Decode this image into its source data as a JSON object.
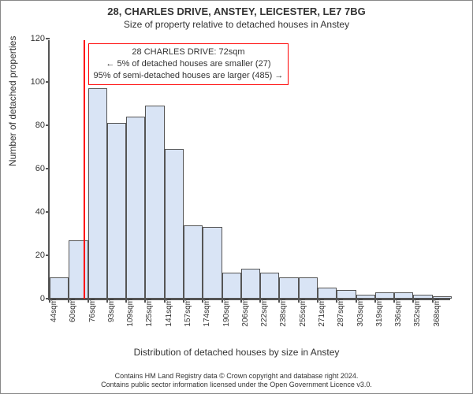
{
  "header": {
    "address": "28, CHARLES DRIVE, ANSTEY, LEICESTER, LE7 7BG",
    "subtitle": "Size of property relative to detached houses in Anstey"
  },
  "axes": {
    "ylabel": "Number of detached properties",
    "xlabel": "Distribution of detached houses by size in Anstey",
    "ylim": [
      0,
      120
    ],
    "yticks": [
      0,
      20,
      40,
      60,
      80,
      100,
      120
    ],
    "xticks": [
      "44sqm",
      "60sqm",
      "76sqm",
      "93sqm",
      "109sqm",
      "125sqm",
      "141sqm",
      "157sqm",
      "174sqm",
      "190sqm",
      "206sqm",
      "222sqm",
      "238sqm",
      "255sqm",
      "271sqm",
      "287sqm",
      "303sqm",
      "319sqm",
      "336sqm",
      "352sqm",
      "368sqm"
    ]
  },
  "chart": {
    "type": "histogram",
    "bar_color": "#d9e4f5",
    "bar_border": "#555555",
    "background": "#ffffff",
    "values": [
      10,
      27,
      97,
      81,
      84,
      89,
      69,
      34,
      33,
      12,
      14,
      12,
      10,
      10,
      5,
      4,
      2,
      3,
      3,
      2,
      1
    ],
    "marker": {
      "position_index": 1.75,
      "color": "#ff0000",
      "width": 2
    },
    "annotation": {
      "line1": "28 CHARLES DRIVE: 72sqm",
      "line2": "← 5% of detached houses are smaller (27)",
      "line3": "95% of semi-detached houses are larger (485) →",
      "border_color": "#ff0000"
    }
  },
  "footer": {
    "line1": "Contains HM Land Registry data © Crown copyright and database right 2024.",
    "line2": "Contains public sector information licensed under the Open Government Licence v3.0."
  }
}
